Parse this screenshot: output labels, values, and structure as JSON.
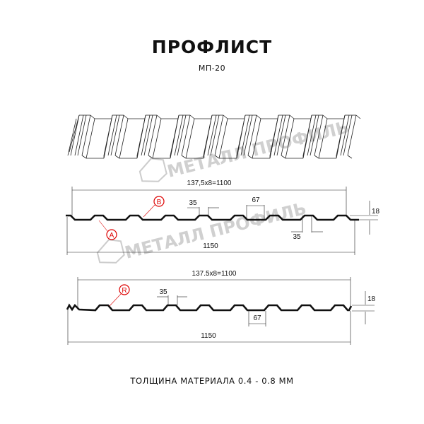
{
  "header": {
    "title": "ПРОФЛИСТ",
    "subtitle": "МП-20"
  },
  "watermark": "МЕТАЛЛ ПРОФИЛЬ",
  "profile_a": {
    "pitch_label": "137,5x8=1100",
    "width_label": "1150",
    "crest_label": "35",
    "trough_label": "67",
    "height_label": "18",
    "bottom_label": "35",
    "marks": [
      "A",
      "B"
    ]
  },
  "profile_r": {
    "pitch_label": "137.5x8=1100",
    "width_label": "1150",
    "crest_label": "35",
    "trough_label": "67",
    "height_label": "18",
    "marks": [
      "R"
    ]
  },
  "footer": "ТОЛЩИНА МАТЕРИАЛА 0.4 - 0.8 ММ",
  "colors": {
    "mark": "#dd0000",
    "profile": "#111111",
    "watermark": "#c8c8c8"
  }
}
